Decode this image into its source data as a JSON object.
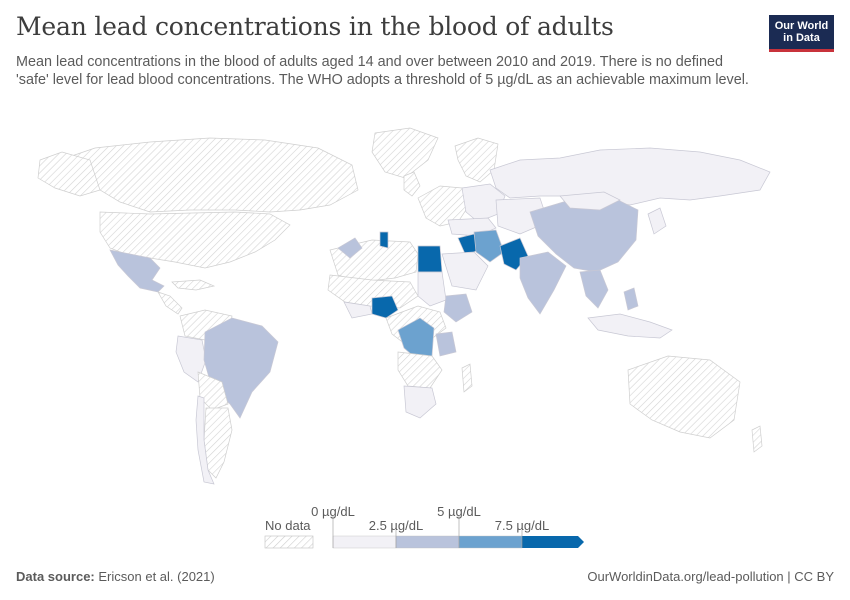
{
  "header": {
    "title": "Mean lead concentrations in the blood of adults",
    "subtitle": "Mean lead concentrations in the blood of adults aged 14 and over between 2010 and 2019. There is no defined 'safe' level for lead blood concentrations. The WHO adopts a threshold of 5 µg/dL as an achievable maximum level."
  },
  "logo": {
    "line1": "Our World",
    "line2": "in Data"
  },
  "legend": {
    "no_data_label": "No data",
    "bins": [
      "0 µg/dL",
      "2.5 µg/dL",
      "5 µg/dL",
      "7.5 µg/dL"
    ],
    "colors": [
      "#f2f1f6",
      "#b9c3dc",
      "#6ca2cf",
      "#0868ac"
    ]
  },
  "colors": {
    "no_data": "hatched",
    "low": "#f2f1f6",
    "mid_low": "#b9c3dc",
    "mid_high": "#6ca2cf",
    "high": "#0868ac"
  },
  "footer": {
    "source_label": "Data source:",
    "source": "Ericson et al. (2021)",
    "credit": "OurWorldinData.org/lead-pollution | CC BY"
  }
}
